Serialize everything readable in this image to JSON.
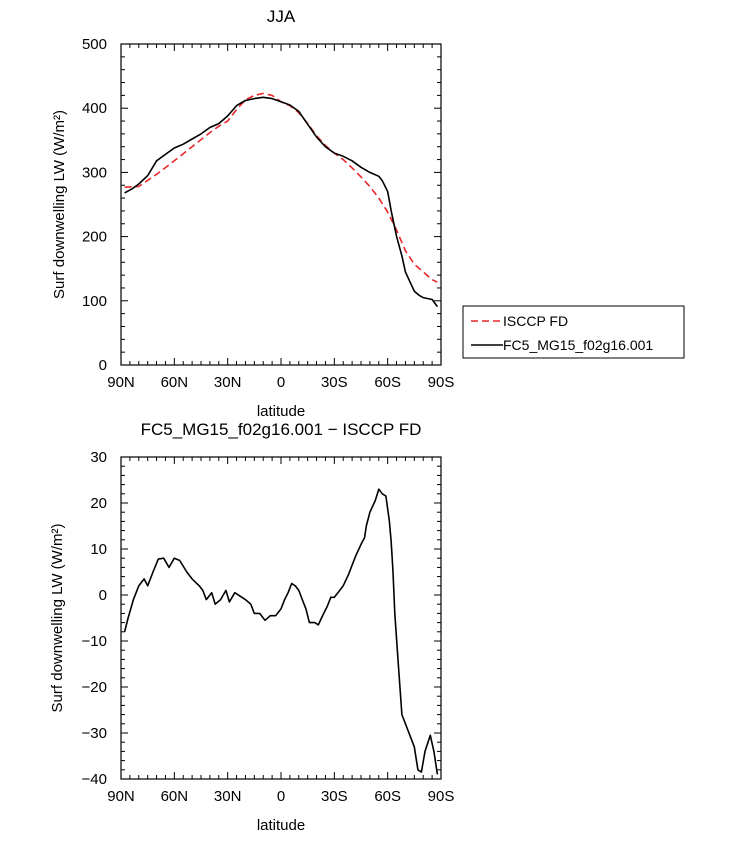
{
  "chart_data": [
    {
      "type": "line",
      "title": "JJA",
      "xlabel": "latitude",
      "ylabel": "Surf downwelling LW (W/m²)",
      "xlim": [
        -90,
        90
      ],
      "ylim": [
        0,
        500
      ],
      "xticks": [
        {
          "value": -90,
          "label": "90N"
        },
        {
          "value": -60,
          "label": "60N"
        },
        {
          "value": -30,
          "label": "30N"
        },
        {
          "value": 0,
          "label": "0"
        },
        {
          "value": 30,
          "label": "30S"
        },
        {
          "value": 60,
          "label": "60S"
        },
        {
          "value": 90,
          "label": "90S"
        }
      ],
      "yticks": [
        {
          "value": 0,
          "label": "0"
        },
        {
          "value": 100,
          "label": "100"
        },
        {
          "value": 200,
          "label": "200"
        },
        {
          "value": 300,
          "label": "300"
        },
        {
          "value": 400,
          "label": "400"
        },
        {
          "value": 500,
          "label": "500"
        }
      ],
      "legend": {
        "placement": "right"
      },
      "series": [
        {
          "name": "ISCCP FD",
          "color": "#e8262b",
          "dash": "dashed",
          "x": [
            -88,
            -80,
            -70,
            -60,
            -50,
            -40,
            -35,
            -30,
            -25,
            -20,
            -15,
            -10,
            -5,
            0,
            5,
            10,
            15,
            20,
            25,
            30,
            35,
            40,
            45,
            50,
            55,
            60,
            65,
            70,
            75,
            80,
            85,
            88
          ],
          "y": [
            277,
            278,
            297,
            318,
            340,
            362,
            372,
            380,
            398,
            413,
            420,
            423,
            420,
            410,
            404,
            393,
            376,
            357,
            342,
            330,
            320,
            307,
            293,
            278,
            260,
            238,
            210,
            178,
            157,
            145,
            133,
            129
          ]
        },
        {
          "name": "FC5_MG15_f02g16.001",
          "color": "#000000",
          "dash": "solid",
          "x": [
            -88,
            -84,
            -80,
            -75,
            -70,
            -65,
            -60,
            -55,
            -50,
            -45,
            -40,
            -35,
            -30,
            -25,
            -20,
            -15,
            -10,
            -5,
            0,
            5,
            10,
            15,
            20,
            25,
            30,
            35,
            40,
            45,
            50,
            55,
            57,
            60,
            62,
            65,
            68,
            70,
            75,
            78,
            80,
            85,
            88
          ],
          "y": [
            268,
            274,
            282,
            295,
            318,
            328,
            338,
            344,
            352,
            360,
            370,
            376,
            388,
            404,
            412,
            415,
            417,
            415,
            410,
            405,
            395,
            375,
            355,
            340,
            330,
            325,
            318,
            308,
            300,
            294,
            287,
            270,
            240,
            200,
            170,
            145,
            115,
            108,
            105,
            102,
            91
          ]
        }
      ]
    },
    {
      "type": "line",
      "title": "FC5_MG15_f02g16.001 − ISCCP FD",
      "xlabel": "latitude",
      "ylabel": "Surf downwelling LW (W/m²)",
      "xlim": [
        -90,
        90
      ],
      "ylim": [
        -40,
        30
      ],
      "xticks": [
        {
          "value": -90,
          "label": "90N"
        },
        {
          "value": -60,
          "label": "60N"
        },
        {
          "value": -30,
          "label": "30N"
        },
        {
          "value": 0,
          "label": "0"
        },
        {
          "value": 30,
          "label": "30S"
        },
        {
          "value": 60,
          "label": "60S"
        },
        {
          "value": 90,
          "label": "90S"
        }
      ],
      "yticks": [
        {
          "value": -40,
          "label": "−40"
        },
        {
          "value": -30,
          "label": "−30"
        },
        {
          "value": -20,
          "label": "−20"
        },
        {
          "value": -10,
          "label": "−10"
        },
        {
          "value": 0,
          "label": "0"
        },
        {
          "value": 10,
          "label": "10"
        },
        {
          "value": 20,
          "label": "20"
        },
        {
          "value": 30,
          "label": "30"
        }
      ],
      "series": [
        {
          "color": "#000000",
          "dash": "solid",
          "x": [
            -88,
            -86,
            -83,
            -80,
            -77,
            -75,
            -72,
            -69,
            -66,
            -63,
            -60,
            -57,
            -53,
            -50,
            -46,
            -44,
            -42,
            -39,
            -37,
            -34,
            -31,
            -29,
            -26,
            -22,
            -20,
            -17,
            -15,
            -12,
            -9,
            -6,
            -3,
            0,
            2,
            4,
            6,
            8,
            10,
            12,
            14,
            16,
            19,
            21,
            24,
            26,
            28,
            30,
            32,
            35,
            38,
            40,
            42,
            45,
            47,
            48,
            50,
            53,
            55,
            57,
            59,
            61,
            62,
            63,
            64,
            66,
            68,
            71,
            75,
            77,
            79,
            81,
            84,
            86,
            88
          ],
          "y": [
            -8,
            -5,
            -1,
            2,
            3.5,
            2,
            5,
            7.8,
            8,
            6,
            8,
            7.5,
            5,
            3.5,
            2,
            1,
            -1,
            0.5,
            -2,
            -1,
            1,
            -1.5,
            0.5,
            -0.5,
            -1,
            -2,
            -4,
            -4,
            -5.5,
            -4.5,
            -4.5,
            -3,
            -1,
            0.5,
            2.5,
            2,
            1,
            -1,
            -3,
            -6,
            -6,
            -6.5,
            -4,
            -2.5,
            -0.5,
            -0.5,
            0.5,
            2,
            4.5,
            6.5,
            8.5,
            11,
            12.5,
            15,
            18,
            20.5,
            23,
            22,
            21.5,
            16,
            11.5,
            5,
            -4,
            -15,
            -26,
            -29,
            -33,
            -38,
            -38.5,
            -34,
            -30.5,
            -34,
            -39
          ]
        }
      ]
    }
  ]
}
